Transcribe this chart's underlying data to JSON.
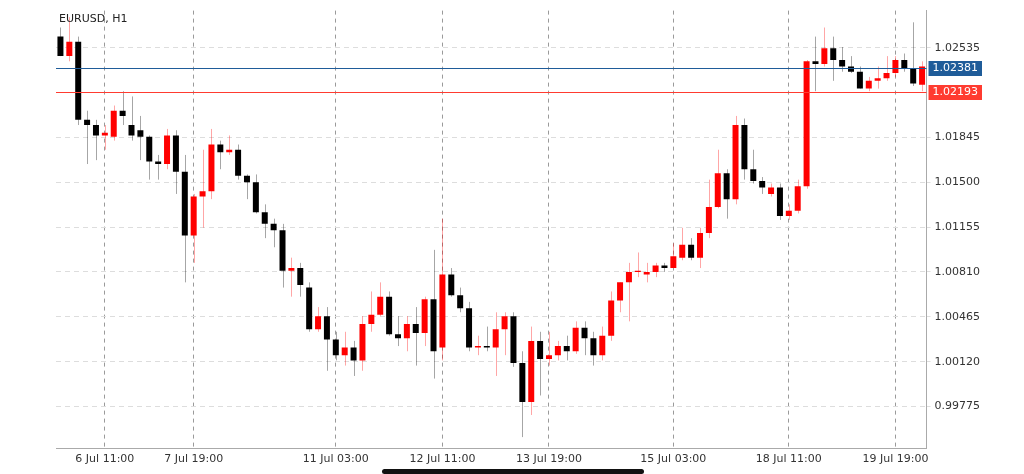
{
  "chart_data": {
    "type": "candlestick",
    "title": "EURUSD, H1",
    "categories": [
      null,
      null,
      null,
      null,
      null,
      "6 Jul 11:00",
      null,
      null,
      null,
      null,
      null,
      null,
      null,
      null,
      null,
      "7 Jul 19:00",
      null,
      null,
      null,
      null,
      null,
      null,
      null,
      null,
      null,
      null,
      null,
      null,
      null,
      null,
      null,
      "11 Jul 03:00",
      null,
      null,
      null,
      null,
      null,
      null,
      null,
      null,
      null,
      null,
      null,
      "12 Jul 11:00",
      null,
      null,
      null,
      null,
      null,
      null,
      null,
      null,
      null,
      null,
      null,
      "13 Jul 19:00",
      null,
      null,
      null,
      null,
      null,
      null,
      null,
      null,
      null,
      null,
      null,
      null,
      null,
      "15 Jul 03:00",
      null,
      null,
      null,
      null,
      null,
      null,
      null,
      null,
      null,
      null,
      null,
      null,
      "18 Jul 11:00",
      null,
      null,
      null,
      null,
      null,
      null,
      null,
      null,
      null,
      null,
      null,
      "19 Jul 19:00",
      null,
      null,
      null
    ],
    "ohlc": [
      [
        1.0262,
        1.0269,
        1.0247,
        1.0247
      ],
      [
        1.0247,
        1.0277,
        1.0243,
        1.0258
      ],
      [
        1.0258,
        1.0262,
        1.0194,
        1.0198
      ],
      [
        1.0198,
        1.0205,
        1.0164,
        1.0194
      ],
      [
        1.0194,
        1.0198,
        1.0167,
        1.0186
      ],
      [
        1.0186,
        1.0194,
        1.0175,
        1.0188
      ],
      [
        1.0185,
        1.0209,
        1.0182,
        1.0205
      ],
      [
        1.0205,
        1.022,
        1.0194,
        1.0201
      ],
      [
        1.0194,
        1.0216,
        1.0182,
        1.0186
      ],
      [
        1.019,
        1.0201,
        1.0167,
        1.0185
      ],
      [
        1.0185,
        1.0186,
        1.0152,
        1.0166
      ],
      [
        1.0166,
        1.0171,
        1.0152,
        1.0164
      ],
      [
        1.0164,
        1.0191,
        1.016,
        1.0186
      ],
      [
        1.0186,
        1.019,
        1.0141,
        1.0158
      ],
      [
        1.0158,
        1.0171,
        1.0073,
        1.0109
      ],
      [
        1.0109,
        1.0141,
        1.0088,
        1.0139
      ],
      [
        1.0139,
        1.0175,
        1.0115,
        1.0143
      ],
      [
        1.0143,
        1.0191,
        1.0137,
        1.0179
      ],
      [
        1.0179,
        1.0182,
        1.016,
        1.0173
      ],
      [
        1.0173,
        1.0186,
        1.0171,
        1.0175
      ],
      [
        1.0175,
        1.0179,
        1.0152,
        1.0155
      ],
      [
        1.0155,
        1.0156,
        1.0137,
        1.015
      ],
      [
        1.015,
        1.0156,
        1.0126,
        1.0127
      ],
      [
        1.0127,
        1.0133,
        1.0107,
        1.0118
      ],
      [
        1.0118,
        1.0122,
        1.01,
        1.0113
      ],
      [
        1.0113,
        1.0118,
        1.0069,
        1.0082
      ],
      [
        1.0082,
        1.0092,
        1.0062,
        1.0084
      ],
      [
        1.0084,
        1.0088,
        1.0062,
        1.0071
      ],
      [
        1.0069,
        1.0073,
        1.0035,
        1.0037
      ],
      [
        1.0037,
        1.0054,
        1.0035,
        1.0047
      ],
      [
        1.0047,
        1.0054,
        1.0005,
        1.0029
      ],
      [
        1.0029,
        1.0035,
        1.0013,
        1.0017
      ],
      [
        1.0017,
        1.0035,
        1.0009,
        1.0023
      ],
      [
        1.0023,
        1.0028,
        1.0001,
        1.0013
      ],
      [
        1.0013,
        1.0047,
        1.0005,
        1.0041
      ],
      [
        1.0041,
        1.0066,
        1.0035,
        1.0048
      ],
      [
        1.0048,
        1.0073,
        1.0047,
        1.0062
      ],
      [
        1.0062,
        1.0066,
        1.0032,
        1.0033
      ],
      [
        1.0033,
        1.0047,
        1.0024,
        1.003
      ],
      [
        1.003,
        1.0047,
        1.002,
        1.0041
      ],
      [
        1.0041,
        1.0054,
        1.0009,
        1.0034
      ],
      [
        1.0034,
        1.0062,
        1.0024,
        1.006
      ],
      [
        1.006,
        1.0098,
        0.9999,
        1.002
      ],
      [
        1.0023,
        1.0122,
        1.0013,
        1.0079
      ],
      [
        1.0079,
        1.0084,
        1.0062,
        1.0063
      ],
      [
        1.0063,
        1.0069,
        1.005,
        1.0053
      ],
      [
        1.0053,
        1.0058,
        1.002,
        1.0023
      ],
      [
        1.0023,
        1.0032,
        1.0017,
        1.0024
      ],
      [
        1.0024,
        1.0039,
        1.002,
        1.0023
      ],
      [
        1.0023,
        1.005,
        1.0001,
        1.0037
      ],
      [
        1.0037,
        1.005,
        1.0017,
        1.0047
      ],
      [
        1.0047,
        1.005,
        1.0008,
        1.0011
      ],
      [
        1.0011,
        1.002,
        0.9954,
        0.9981
      ],
      [
        0.9981,
        1.0039,
        0.9971,
        1.0028
      ],
      [
        1.0028,
        1.0035,
        0.9986,
        1.0014
      ],
      [
        1.0014,
        1.0035,
        1.0009,
        1.0017
      ],
      [
        1.0017,
        1.0028,
        1.0013,
        1.0024
      ],
      [
        1.0024,
        1.0032,
        1.0013,
        1.002
      ],
      [
        1.002,
        1.0043,
        1.0018,
        1.0038
      ],
      [
        1.0038,
        1.0043,
        1.0017,
        1.003
      ],
      [
        1.003,
        1.0035,
        1.0009,
        1.0017
      ],
      [
        1.0017,
        1.0039,
        1.0013,
        1.0032
      ],
      [
        1.0032,
        1.0066,
        1.0028,
        1.0059
      ],
      [
        1.0059,
        1.0073,
        1.005,
        1.0073
      ],
      [
        1.0073,
        1.0088,
        1.0043,
        1.0081
      ],
      [
        1.0081,
        1.0096,
        1.0077,
        1.0082
      ],
      [
        1.0079,
        1.0088,
        1.0073,
        1.0081
      ],
      [
        1.0081,
        1.0088,
        1.0077,
        1.0086
      ],
      [
        1.0086,
        1.0088,
        1.0081,
        1.0084
      ],
      [
        1.0084,
        1.0103,
        1.0084,
        1.0093
      ],
      [
        1.0092,
        1.0115,
        1.009,
        1.0102
      ],
      [
        1.0102,
        1.0107,
        1.009,
        1.0092
      ],
      [
        1.0092,
        1.0115,
        1.0084,
        1.0111
      ],
      [
        1.0111,
        1.0152,
        1.0107,
        1.0131
      ],
      [
        1.0131,
        1.0175,
        1.013,
        1.0157
      ],
      [
        1.0157,
        1.016,
        1.0122,
        1.0137
      ],
      [
        1.0137,
        1.0201,
        1.0133,
        1.0194
      ],
      [
        1.0194,
        1.0199,
        1.0152,
        1.016
      ],
      [
        1.016,
        1.0175,
        1.0149,
        1.0151
      ],
      [
        1.0151,
        1.0154,
        1.0141,
        1.0146
      ],
      [
        1.0141,
        1.0149,
        1.0139,
        1.0146
      ],
      [
        1.0146,
        1.0149,
        1.0121,
        1.0124
      ],
      [
        1.0124,
        1.0133,
        1.0121,
        1.0128
      ],
      [
        1.0128,
        1.0152,
        1.0126,
        1.0147
      ],
      [
        1.0147,
        1.0244,
        1.0145,
        1.0243
      ],
      [
        1.0243,
        1.0262,
        1.022,
        1.0241
      ],
      [
        1.0241,
        1.0269,
        1.0239,
        1.0253
      ],
      [
        1.0253,
        1.0262,
        1.0228,
        1.0244
      ],
      [
        1.0244,
        1.0254,
        1.0235,
        1.0239
      ],
      [
        1.0239,
        1.0247,
        1.0234,
        1.0235
      ],
      [
        1.0235,
        1.0239,
        1.0222,
        1.0222
      ],
      [
        1.0222,
        1.0231,
        1.022,
        1.0228
      ],
      [
        1.0228,
        1.0239,
        1.0222,
        1.023
      ],
      [
        1.023,
        1.0247,
        1.0228,
        1.0234
      ],
      [
        1.0234,
        1.0247,
        1.0231,
        1.0244
      ],
      [
        1.0244,
        1.0249,
        1.0235,
        1.0237
      ],
      [
        1.0237,
        1.0273,
        1.0224,
        1.0226
      ],
      [
        1.0225,
        1.0243,
        1.022,
        1.0239
      ]
    ],
    "colors": [
      "#000000",
      "#ff0000",
      "#000000",
      "#000000",
      "#000000",
      "#ff0000",
      "#ff0000",
      "#000000",
      "#000000",
      "#000000",
      "#000000",
      "#000000",
      "#ff0000",
      "#000000",
      "#000000",
      "#ff0000",
      "#ff0000",
      "#ff0000",
      "#000000",
      "#ff0000",
      "#000000",
      "#000000",
      "#000000",
      "#000000",
      "#000000",
      "#000000",
      "#ff0000",
      "#000000",
      "#000000",
      "#ff0000",
      "#000000",
      "#000000",
      "#ff0000",
      "#000000",
      "#ff0000",
      "#ff0000",
      "#ff0000",
      "#000000",
      "#000000",
      "#ff0000",
      "#000000",
      "#ff0000",
      "#000000",
      "#ff0000",
      "#000000",
      "#000000",
      "#000000",
      "#ff0000",
      "#000000",
      "#ff0000",
      "#ff0000",
      "#000000",
      "#000000",
      "#ff0000",
      "#000000",
      "#ff0000",
      "#ff0000",
      "#000000",
      "#ff0000",
      "#000000",
      "#000000",
      "#ff0000",
      "#ff0000",
      "#ff0000",
      "#ff0000",
      "#ff0000",
      "#ff0000",
      "#ff0000",
      "#000000",
      "#ff0000",
      "#ff0000",
      "#000000",
      "#ff0000",
      "#ff0000",
      "#ff0000",
      "#000000",
      "#ff0000",
      "#000000",
      "#000000",
      "#000000",
      "#ff0000",
      "#000000",
      "#ff0000",
      "#ff0000",
      "#ff0000",
      "#000000",
      "#ff0000",
      "#000000",
      "#000000",
      "#000000",
      "#000000",
      "#ff0000",
      "#ff0000",
      "#ff0000",
      "#ff0000",
      "#000000",
      "#000000",
      "#ff0000"
    ],
    "ylim": [
      0.9945,
      1.0282
    ],
    "yticks": [
      {
        "value": 0.99775,
        "label": "0.99775"
      },
      {
        "value": 1.0012,
        "label": "1.00120"
      },
      {
        "value": 1.00465,
        "label": "1.00465"
      },
      {
        "value": 1.0081,
        "label": "1.00810"
      },
      {
        "value": 1.01155,
        "label": "1.01155"
      },
      {
        "value": 1.015,
        "label": "1.01500"
      },
      {
        "value": 1.01845,
        "label": "1.01845"
      },
      {
        "value": 1.02535,
        "label": "1.02535"
      }
    ],
    "ref_lines": [
      {
        "axis": "y",
        "value": 1.02381,
        "label": "1.02381",
        "color": "#1f5c99"
      },
      {
        "axis": "y",
        "value": 1.02193,
        "label": "1.02193",
        "color": "#ff3b30"
      }
    ],
    "grid": true,
    "legend": false
  }
}
